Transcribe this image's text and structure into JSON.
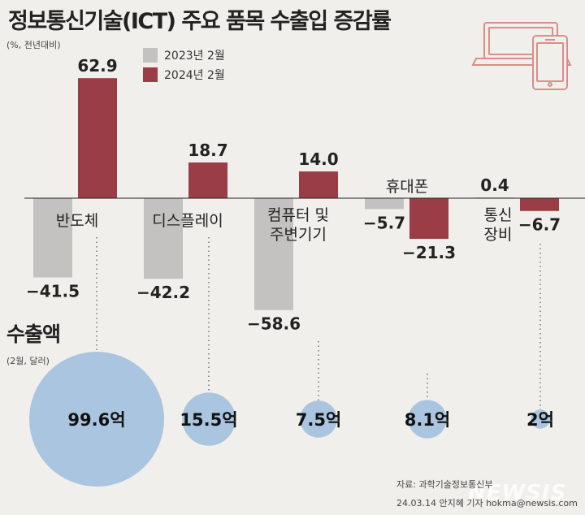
{
  "title": "정보통신기술(ICT) 주요 품목 수출입 증감률",
  "unit_label": "(%, 전년대비)",
  "legend": [
    {
      "label": "2023년 2월",
      "color": "#c3c2c0"
    },
    {
      "label": "2024년 2월",
      "color": "#9a3d47"
    }
  ],
  "chart_data": {
    "type": "bar",
    "title": "정보통신기술(ICT) 주요 품목 수출입 증감률",
    "ylabel": "(%, 전년대비)",
    "categories": [
      "반도체",
      "디스플레이",
      "컴퓨터 및 주변기기",
      "휴대폰",
      "통신장비"
    ],
    "category_lines": [
      [
        "반도체"
      ],
      [
        "디스플레이"
      ],
      [
        "컴퓨터 및",
        "주변기기"
      ],
      [
        "휴대폰"
      ],
      [
        "통신",
        "장비"
      ]
    ],
    "series": [
      {
        "name": "2023년 2월",
        "values": [
          -41.5,
          -42.2,
          -58.6,
          -5.7,
          0.4
        ]
      },
      {
        "name": "2024년 2월",
        "values": [
          62.9,
          18.7,
          14.0,
          -21.3,
          -6.7
        ]
      }
    ],
    "value_labels": [
      [
        "−41.5",
        "−42.2",
        "−58.6",
        "−5.7",
        "0.4"
      ],
      [
        "62.9",
        "18.7",
        "14.0",
        "−21.3",
        "−6.7"
      ]
    ],
    "exports": {
      "title": "수출액",
      "unit": "(2월, 달러)",
      "values": [
        99.6,
        15.5,
        7.5,
        8.1,
        2
      ],
      "labels": [
        "99.6억",
        "15.5억",
        "7.5억",
        "8.1억",
        "2억"
      ]
    }
  },
  "source": "자료: 과학기술정보통신부",
  "credit": "24.03.14 안지혜 기자 hokma@newsis.com",
  "logo": "NEWSIS",
  "colors": {
    "bar_2023": "#c3c2c0",
    "bar_2024": "#9a3d47",
    "bubble": "#a9c5df",
    "icon": "#d88f8a",
    "background": "#f1efeb"
  }
}
